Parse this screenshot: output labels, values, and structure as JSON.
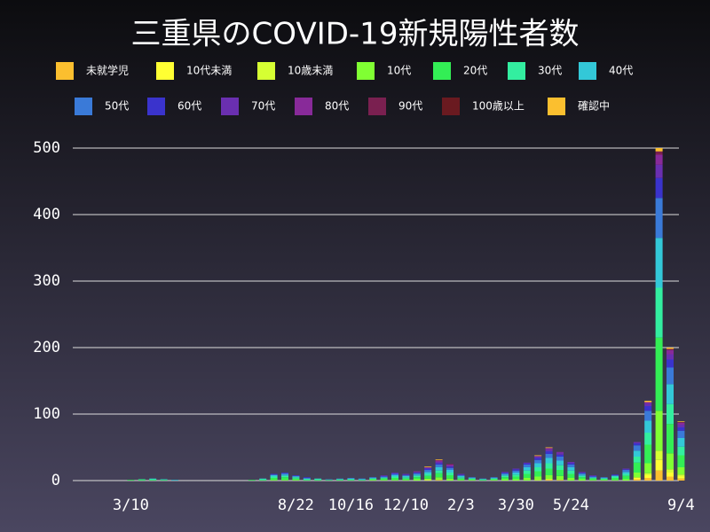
{
  "chart_data": {
    "type": "stacked_bar",
    "title": "三重県のCOVID-19新規陽性者数",
    "categories": [
      null,
      "3/10",
      null,
      null,
      null,
      null,
      null,
      null,
      null,
      null,
      null,
      null,
      null,
      null,
      null,
      null,
      "8/22",
      null,
      null,
      null,
      null,
      "10/16",
      null,
      null,
      null,
      null,
      "12/10",
      null,
      null,
      null,
      null,
      "2/3",
      null,
      null,
      null,
      null,
      "3/30",
      null,
      null,
      null,
      null,
      "5/24",
      null,
      null,
      null,
      null,
      null,
      null,
      null,
      null,
      null,
      "9/4"
    ],
    "ylim": [
      0,
      500
    ],
    "yticks": [
      0,
      100,
      200,
      300,
      400,
      500
    ],
    "grid": true,
    "series": [
      {
        "name": "未就学児",
        "color": "#fbbf2f",
        "values": [
          0,
          0,
          0,
          0,
          0,
          0,
          0,
          0,
          0,
          0,
          0,
          0,
          0,
          0,
          0,
          0,
          0,
          0,
          0,
          0,
          0,
          0,
          0,
          0,
          0,
          0,
          0,
          0,
          0,
          1,
          0,
          0,
          0,
          0,
          0,
          0,
          0,
          0,
          0,
          1,
          1,
          0,
          0,
          0,
          0,
          0,
          0,
          2,
          4,
          15,
          6,
          3
        ]
      },
      {
        "name": "10代未満",
        "color": "#ffff33",
        "values": [
          0,
          0,
          0,
          0,
          0,
          0,
          0,
          0,
          0,
          0,
          0,
          0,
          0,
          0,
          0,
          0,
          0,
          0,
          0,
          0,
          0,
          0,
          0,
          0,
          0,
          0,
          0,
          0,
          1,
          0,
          0,
          0,
          0,
          0,
          0,
          0,
          0,
          0,
          0,
          1,
          0,
          0,
          0,
          0,
          0,
          0,
          0,
          2,
          4,
          16,
          6,
          3
        ]
      },
      {
        "name": "10歳未満",
        "color": "#d6ff33",
        "values": [
          0,
          0,
          0,
          0,
          0,
          0,
          0,
          0,
          0,
          0,
          0,
          0,
          0,
          0,
          0,
          0,
          0,
          0,
          0,
          0,
          0,
          0,
          0,
          0,
          0,
          0,
          0,
          0,
          0,
          0,
          0,
          0,
          0,
          0,
          0,
          0,
          0,
          0,
          1,
          0,
          0,
          0,
          0,
          0,
          0,
          0,
          0,
          1,
          3,
          14,
          5,
          3
        ]
      },
      {
        "name": "10代",
        "color": "#80ff33",
        "values": [
          0,
          0,
          0,
          0,
          0,
          0,
          0,
          0,
          0,
          0,
          0,
          0,
          0,
          0,
          1,
          1,
          1,
          0,
          0,
          0,
          0,
          0,
          0,
          1,
          1,
          1,
          1,
          2,
          2,
          4,
          3,
          1,
          1,
          0,
          1,
          2,
          2,
          4,
          5,
          6,
          6,
          4,
          2,
          1,
          1,
          1,
          2,
          7,
          15,
          60,
          24,
          11
        ]
      },
      {
        "name": "20代",
        "color": "#33ee55",
        "values": [
          0,
          1,
          1,
          1,
          1,
          0,
          0,
          0,
          0,
          0,
          0,
          0,
          1,
          1,
          3,
          4,
          2,
          1,
          1,
          1,
          1,
          1,
          1,
          1,
          2,
          3,
          2,
          3,
          4,
          6,
          5,
          2,
          1,
          1,
          1,
          3,
          4,
          6,
          8,
          10,
          9,
          6,
          3,
          2,
          1,
          3,
          5,
          15,
          28,
          110,
          44,
          18
        ]
      },
      {
        "name": "30代",
        "color": "#33eea0",
        "values": [
          0,
          0,
          1,
          1,
          0,
          0,
          0,
          0,
          0,
          0,
          0,
          0,
          0,
          1,
          2,
          2,
          2,
          1,
          1,
          0,
          1,
          1,
          0,
          1,
          1,
          2,
          2,
          2,
          3,
          4,
          4,
          2,
          1,
          1,
          1,
          2,
          3,
          5,
          6,
          8,
          7,
          5,
          2,
          1,
          1,
          2,
          3,
          9,
          18,
          75,
          30,
          13
        ]
      },
      {
        "name": "40代",
        "color": "#33c8d8",
        "values": [
          0,
          0,
          0,
          1,
          1,
          1,
          0,
          0,
          0,
          0,
          0,
          0,
          0,
          1,
          2,
          2,
          1,
          1,
          1,
          0,
          0,
          1,
          1,
          1,
          1,
          2,
          2,
          2,
          3,
          5,
          4,
          2,
          1,
          0,
          1,
          2,
          3,
          5,
          6,
          8,
          7,
          5,
          2,
          1,
          1,
          1,
          3,
          9,
          18,
          75,
          30,
          13
        ]
      },
      {
        "name": "50代",
        "color": "#3a7ad8",
        "values": [
          0,
          0,
          0,
          0,
          0,
          0,
          0,
          0,
          0,
          0,
          0,
          0,
          0,
          0,
          1,
          2,
          1,
          1,
          0,
          1,
          1,
          1,
          1,
          1,
          1,
          2,
          1,
          2,
          3,
          4,
          3,
          1,
          1,
          1,
          1,
          2,
          3,
          4,
          5,
          6,
          6,
          4,
          2,
          1,
          1,
          1,
          3,
          8,
          15,
          60,
          25,
          11
        ]
      },
      {
        "name": "60代",
        "color": "#3a33cc",
        "values": [
          0,
          0,
          0,
          0,
          0,
          0,
          0,
          0,
          0,
          0,
          0,
          0,
          0,
          0,
          1,
          1,
          1,
          1,
          0,
          0,
          0,
          0,
          0,
          0,
          1,
          1,
          1,
          1,
          2,
          2,
          2,
          1,
          0,
          0,
          0,
          1,
          2,
          2,
          3,
          4,
          3,
          2,
          1,
          1,
          0,
          1,
          1,
          3,
          7,
          30,
          12,
          5
        ]
      },
      {
        "name": "70代",
        "color": "#6a2fb0",
        "values": [
          0,
          0,
          0,
          0,
          0,
          0,
          0,
          0,
          0,
          0,
          0,
          0,
          0,
          0,
          0,
          0,
          0,
          0,
          0,
          0,
          0,
          0,
          0,
          0,
          1,
          1,
          1,
          1,
          1,
          2,
          1,
          1,
          0,
          0,
          0,
          1,
          1,
          1,
          2,
          3,
          3,
          2,
          1,
          1,
          0,
          0,
          1,
          2,
          4,
          20,
          8,
          4
        ]
      },
      {
        "name": "80代",
        "color": "#882a99",
        "values": [
          0,
          0,
          0,
          0,
          0,
          0,
          0,
          0,
          0,
          0,
          0,
          0,
          0,
          0,
          0,
          0,
          0,
          0,
          0,
          0,
          0,
          0,
          0,
          0,
          0,
          0,
          0,
          1,
          1,
          2,
          2,
          0,
          0,
          0,
          0,
          0,
          0,
          0,
          1,
          2,
          1,
          0,
          0,
          0,
          0,
          0,
          0,
          0,
          2,
          15,
          6,
          3
        ]
      },
      {
        "name": "90代",
        "color": "#7a2050",
        "values": [
          0,
          0,
          0,
          0,
          0,
          0,
          0,
          0,
          0,
          0,
          0,
          0,
          0,
          0,
          0,
          0,
          0,
          0,
          0,
          0,
          0,
          0,
          0,
          0,
          0,
          0,
          0,
          0,
          0,
          1,
          1,
          0,
          0,
          0,
          0,
          0,
          0,
          0,
          0,
          0,
          0,
          0,
          0,
          0,
          0,
          0,
          0,
          0,
          0,
          5,
          2,
          1
        ]
      },
      {
        "name": "100歳以上",
        "color": "#6a1a20",
        "values": [
          0,
          0,
          0,
          0,
          0,
          0,
          0,
          0,
          0,
          0,
          0,
          0,
          0,
          0,
          0,
          0,
          0,
          0,
          0,
          0,
          0,
          0,
          0,
          0,
          0,
          0,
          0,
          0,
          0,
          0,
          0,
          0,
          0,
          0,
          0,
          0,
          0,
          0,
          0,
          0,
          0,
          0,
          0,
          0,
          0,
          0,
          0,
          0,
          0,
          0,
          0,
          0
        ]
      },
      {
        "name": "確認中",
        "color": "#fbbf2f",
        "values": [
          0,
          0,
          0,
          0,
          0,
          0,
          0,
          0,
          0,
          0,
          0,
          0,
          0,
          0,
          0,
          0,
          0,
          0,
          0,
          0,
          0,
          0,
          0,
          0,
          0,
          0,
          0,
          0,
          1,
          1,
          0,
          0,
          0,
          0,
          0,
          0,
          0,
          0,
          1,
          1,
          0,
          0,
          0,
          0,
          0,
          0,
          0,
          0,
          2,
          5,
          2,
          1
        ]
      }
    ]
  }
}
